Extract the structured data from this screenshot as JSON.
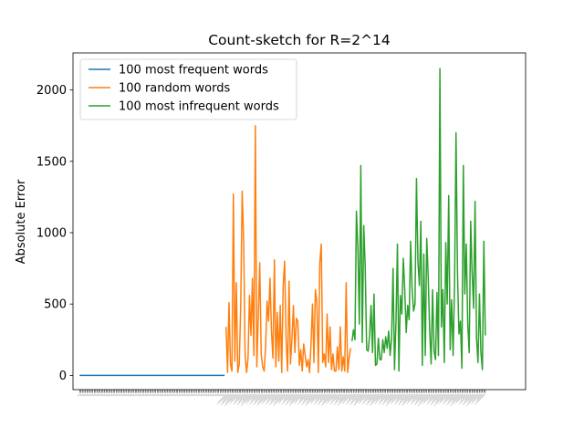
{
  "chart_data": {
    "type": "line",
    "title": "Count-sketch for R=2^14",
    "xlabel": "",
    "ylabel": "Absolute Error",
    "ylim": [
      -100,
      2260
    ],
    "yticks": [
      0,
      500,
      1000,
      1500,
      2000
    ],
    "xlim": [
      -4.5,
      304.5
    ],
    "grid": false,
    "legend": "top-left",
    "series": [
      {
        "name": "100 most frequent words",
        "color": "#1f77b4",
        "x_start": 0,
        "values": [
          0,
          0,
          0,
          0,
          0,
          0,
          0,
          0,
          0,
          0,
          0,
          0,
          0,
          0,
          0,
          0,
          0,
          0,
          0,
          0,
          0,
          0,
          0,
          0,
          0,
          0,
          0,
          0,
          0,
          0,
          0,
          0,
          0,
          0,
          0,
          0,
          0,
          0,
          0,
          0,
          0,
          0,
          0,
          0,
          0,
          0,
          0,
          0,
          0,
          0,
          0,
          0,
          0,
          0,
          0,
          0,
          0,
          0,
          0,
          0,
          0,
          0,
          0,
          0,
          0,
          0,
          0,
          0,
          0,
          0,
          0,
          0,
          0,
          0,
          0,
          0,
          0,
          0,
          0,
          0,
          0,
          0,
          0,
          0,
          0,
          0,
          0,
          0,
          0,
          0,
          0,
          0,
          0,
          0,
          0,
          0,
          0,
          0,
          0,
          0
        ]
      },
      {
        "name": "100 random words",
        "color": "#ff7f0e",
        "x_start": 100,
        "values": [
          340,
          20,
          510,
          80,
          30,
          1270,
          100,
          650,
          20,
          80,
          480,
          1290,
          950,
          140,
          20,
          120,
          560,
          280,
          680,
          140,
          1750,
          60,
          420,
          790,
          150,
          60,
          30,
          200,
          520,
          380,
          680,
          310,
          120,
          810,
          60,
          440,
          100,
          490,
          20,
          630,
          800,
          250,
          30,
          660,
          80,
          260,
          490,
          160,
          400,
          380,
          70,
          180,
          30,
          220,
          140,
          60,
          110,
          20,
          220,
          500,
          90,
          600,
          520,
          20,
          790,
          920,
          90,
          150,
          60,
          430,
          90,
          340,
          40,
          150,
          30,
          30,
          200,
          40,
          340,
          30,
          130,
          30,
          650,
          20,
          120,
          190
        ]
      },
      {
        "name": "100 most infrequent words",
        "color": "#2ca02c",
        "x_start": 186,
        "values": [
          240,
          320,
          250,
          1150,
          900,
          360,
          1470,
          230,
          1050,
          760,
          180,
          170,
          280,
          490,
          160,
          570,
          70,
          80,
          260,
          110,
          110,
          250,
          160,
          270,
          190,
          310,
          140,
          260,
          750,
          40,
          370,
          920,
          30,
          560,
          430,
          820,
          600,
          300,
          490,
          390,
          940,
          610,
          450,
          500,
          1380,
          800,
          630,
          1080,
          70,
          850,
          140,
          960,
          690,
          320,
          80,
          600,
          170,
          110,
          580,
          140,
          2150,
          340,
          600,
          90,
          930,
          500,
          1260,
          180,
          530,
          140,
          630,
          1700,
          720,
          290,
          380,
          50,
          1470,
          570,
          920,
          360,
          160,
          1080,
          720,
          470,
          1220,
          260,
          90,
          570,
          160,
          40,
          940,
          280
        ]
      }
    ]
  }
}
